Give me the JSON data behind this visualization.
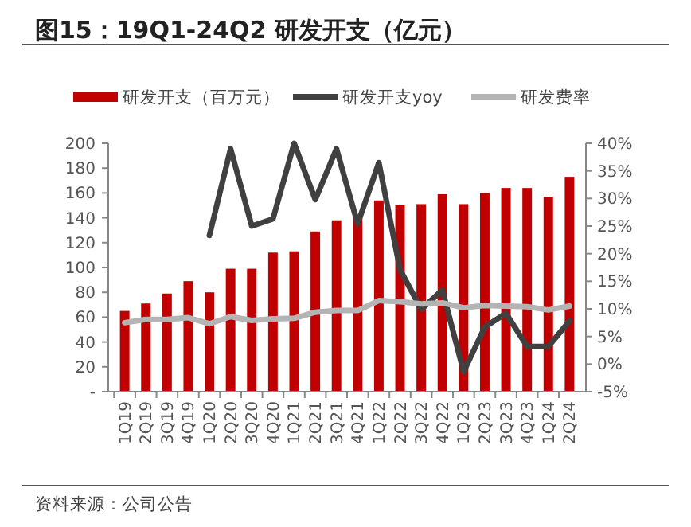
{
  "chart_data": {
    "type": "bar",
    "title": "图15：19Q1-24Q2 研发开支（亿元）",
    "annotations": [
      "资料来源：公司公告"
    ],
    "categories": [
      "1Q19",
      "2Q19",
      "3Q19",
      "4Q19",
      "1Q20",
      "2Q20",
      "3Q20",
      "4Q20",
      "1Q21",
      "2Q21",
      "3Q21",
      "4Q21",
      "1Q22",
      "2Q22",
      "3Q22",
      "4Q22",
      "1Q23",
      "2Q23",
      "3Q23",
      "4Q23",
      "1Q24",
      "2Q24"
    ],
    "series": [
      {
        "name": "研发开支（百万元）",
        "color": "#c00000",
        "values": [
          65,
          71,
          79,
          89,
          80,
          99,
          99,
          112,
          113,
          129,
          138,
          140,
          154,
          150,
          151,
          159,
          151,
          160,
          164,
          164,
          157,
          173
        ]
      },
      {
        "name": "研发开支yoy",
        "type": "line",
        "axis": "y2",
        "color": "#404040",
        "values": [
          null,
          null,
          null,
          null,
          23.3,
          39,
          25,
          26.3,
          40,
          29.8,
          39,
          25.4,
          36.5,
          17.1,
          9.9,
          13.4,
          -1.4,
          6.7,
          9.2,
          3.2,
          3.2,
          7.8
        ]
      },
      {
        "name": "研发费率",
        "type": "line",
        "axis": "y2",
        "color": "#b4b4b4",
        "values": [
          7.5,
          8.1,
          8.1,
          8.4,
          7.3,
          8.6,
          7.9,
          8.2,
          8.3,
          9.4,
          9.7,
          9.7,
          11.5,
          11.3,
          10.9,
          11.1,
          10.2,
          10.6,
          10.5,
          10.4,
          9.8,
          10.5
        ]
      }
    ],
    "ylim": [
      0,
      200
    ],
    "yticks": [
      {
        "value": 0,
        "label": "-"
      },
      20,
      40,
      60,
      80,
      100,
      120,
      140,
      160,
      180,
      200
    ],
    "y2lim": [
      -5,
      40
    ],
    "y2ticks": [
      {
        "value": -5,
        "label": "-5%"
      },
      {
        "value": 0,
        "label": "0%"
      },
      {
        "value": 5,
        "label": "5%"
      },
      {
        "value": 10,
        "label": "10%"
      },
      {
        "value": 15,
        "label": "15%"
      },
      {
        "value": 20,
        "label": "20%"
      },
      {
        "value": 25,
        "label": "25%"
      },
      {
        "value": 30,
        "label": "30%"
      },
      {
        "value": 35,
        "label": "35%"
      },
      {
        "value": 40,
        "label": "40%"
      }
    ],
    "legend": "top",
    "grid": false
  }
}
